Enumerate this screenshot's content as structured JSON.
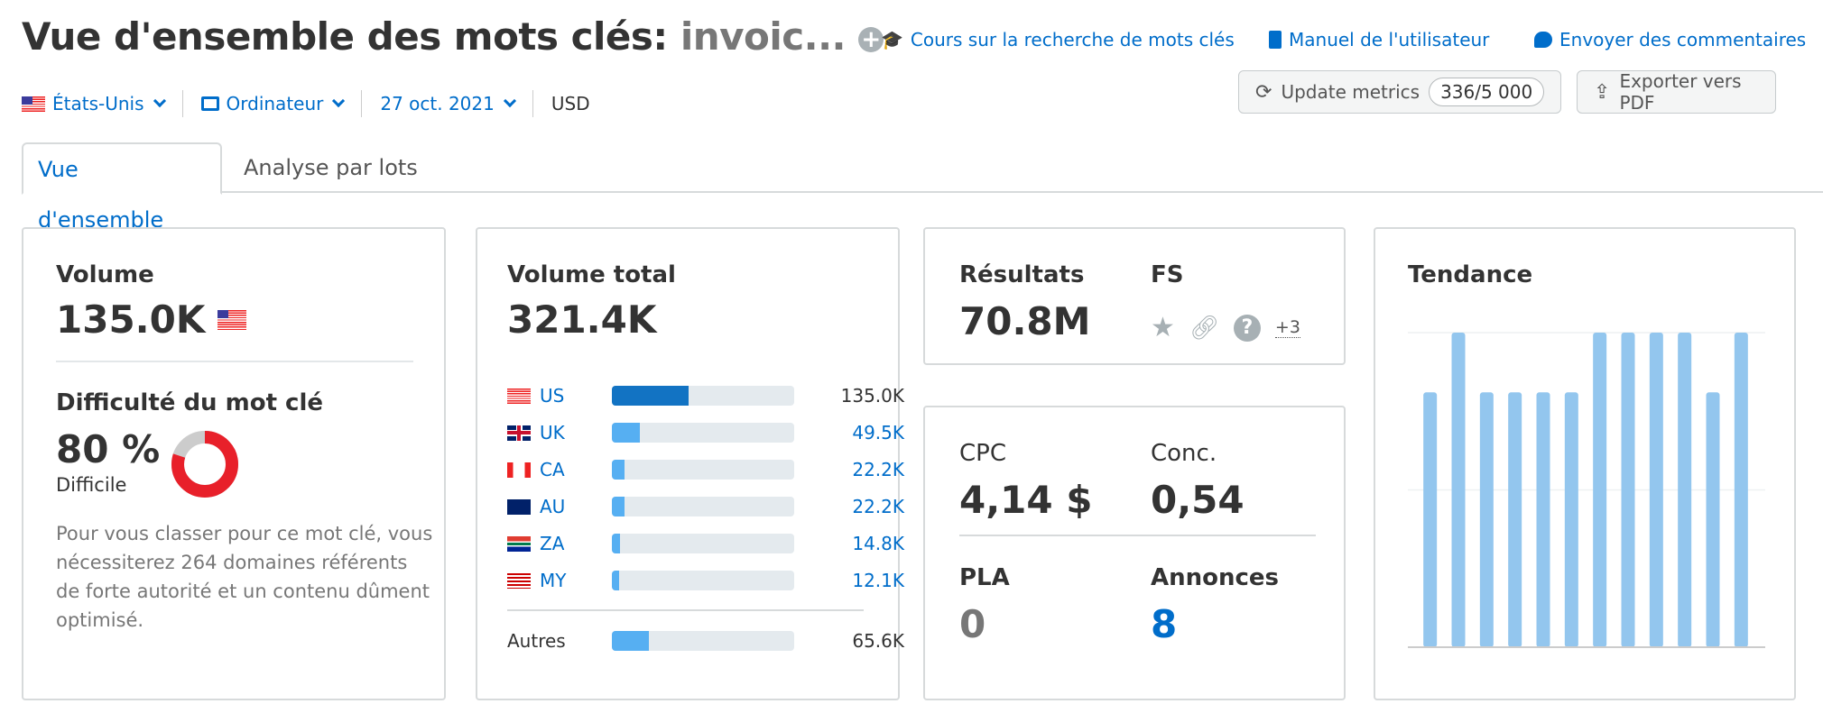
{
  "header": {
    "title_prefix": "Vue d'ensemble des mots clés:",
    "keyword": "invoic...",
    "add_icon": "plus-circle-icon",
    "links": [
      {
        "label": "Cours sur la recherche de mots clés",
        "icon": "graduation-cap-icon"
      },
      {
        "label": "Manuel de l'utilisateur",
        "icon": "book-icon"
      },
      {
        "label": "Envoyer des commentaires",
        "icon": "speech-bubble-icon"
      }
    ],
    "filters": {
      "country": "États-Unis",
      "device": "Ordinateur",
      "date": "27 oct. 2021",
      "currency": "USD"
    },
    "update_button": {
      "label": "Update metrics",
      "count": "336/5 000"
    },
    "export_button": {
      "label": "Exporter vers PDF"
    }
  },
  "tabs": [
    {
      "label": "Vue d'ensemble",
      "active": true
    },
    {
      "label": "Analyse par lots",
      "active": false
    }
  ],
  "volume": {
    "label": "Volume",
    "value": "135.0K"
  },
  "difficulty": {
    "label": "Difficulté du mot clé",
    "value": "80 %",
    "percent": 80,
    "level": "Difficile",
    "color": "#e8202a",
    "description": "Pour vous classer pour ce mot clé, vous nécessiterez 264 domaines référents de forte autorité et un contenu dûment optimisé."
  },
  "total_volume": {
    "label": "Volume total",
    "value": "321.4K",
    "total": 321.4,
    "countries": [
      {
        "code": "US",
        "value": "135.0K",
        "num": 135.0
      },
      {
        "code": "UK",
        "value": "49.5K",
        "num": 49.5
      },
      {
        "code": "CA",
        "value": "22.2K",
        "num": 22.2
      },
      {
        "code": "AU",
        "value": "22.2K",
        "num": 22.2
      },
      {
        "code": "ZA",
        "value": "14.8K",
        "num": 14.8
      },
      {
        "code": "MY",
        "value": "12.1K",
        "num": 12.1
      }
    ],
    "others": {
      "label": "Autres",
      "value": "65.6K",
      "num": 65.6
    }
  },
  "results": {
    "label": "Résultats",
    "value": "70.8M"
  },
  "fs": {
    "label": "FS",
    "icons": [
      "star-icon",
      "link-icon",
      "question-icon"
    ],
    "more": "+3"
  },
  "cpc": {
    "label": "CPC",
    "value": "4,14 $"
  },
  "competition": {
    "label": "Conc.",
    "value": "0,54"
  },
  "pla": {
    "label": "PLA",
    "value": "0"
  },
  "ads": {
    "label": "Annonces",
    "value": "8"
  },
  "chart_data": {
    "type": "bar",
    "title": "Tendance",
    "values": [
      0.81,
      1,
      0.81,
      0.81,
      0.81,
      0.81,
      1,
      1,
      1,
      1,
      0.81,
      1
    ],
    "ylim": [
      0,
      1
    ],
    "grid": true,
    "color": "#93c6ee"
  }
}
